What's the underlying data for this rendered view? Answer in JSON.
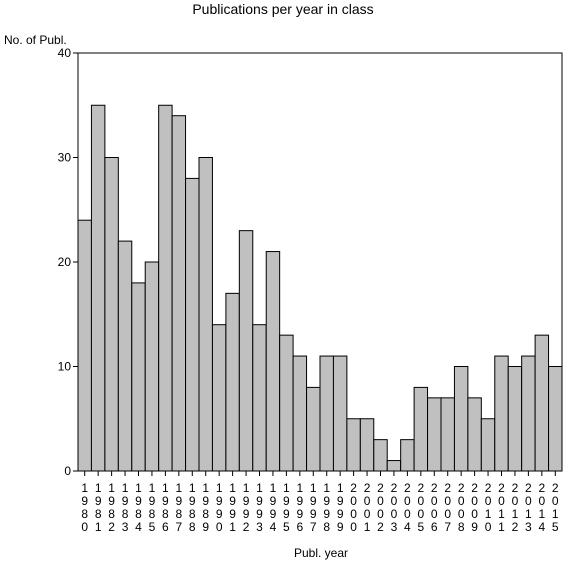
{
  "chart_data": {
    "type": "bar",
    "title": "Publications per year in class",
    "ylabel": "No. of Publ.",
    "xlabel": "Publ. year",
    "ylim": [
      0,
      40
    ],
    "yticks": [
      0,
      10,
      20,
      30,
      40
    ],
    "grid": false,
    "legend": "none",
    "categories": [
      "1980",
      "1981",
      "1982",
      "1983",
      "1984",
      "1985",
      "1986",
      "1987",
      "1988",
      "1989",
      "1990",
      "1991",
      "1992",
      "1993",
      "1994",
      "1995",
      "1996",
      "1997",
      "1998",
      "1999",
      "2000",
      "2001",
      "2002",
      "2003",
      "2004",
      "2005",
      "2006",
      "2007",
      "2008",
      "2009",
      "2010",
      "2011",
      "2012",
      "2013",
      "2014",
      "2015"
    ],
    "values": [
      24,
      35,
      30,
      22,
      18,
      20,
      35,
      34,
      28,
      30,
      14,
      17,
      23,
      14,
      21,
      13,
      11,
      8,
      11,
      11,
      5,
      5,
      3,
      1,
      3,
      8,
      7,
      7,
      10,
      7,
      5,
      11,
      10,
      11,
      13,
      10
    ],
    "colors": {
      "bar_fill": "#c0c0c0",
      "bar_stroke": "#000000",
      "axis": "#000000"
    }
  }
}
